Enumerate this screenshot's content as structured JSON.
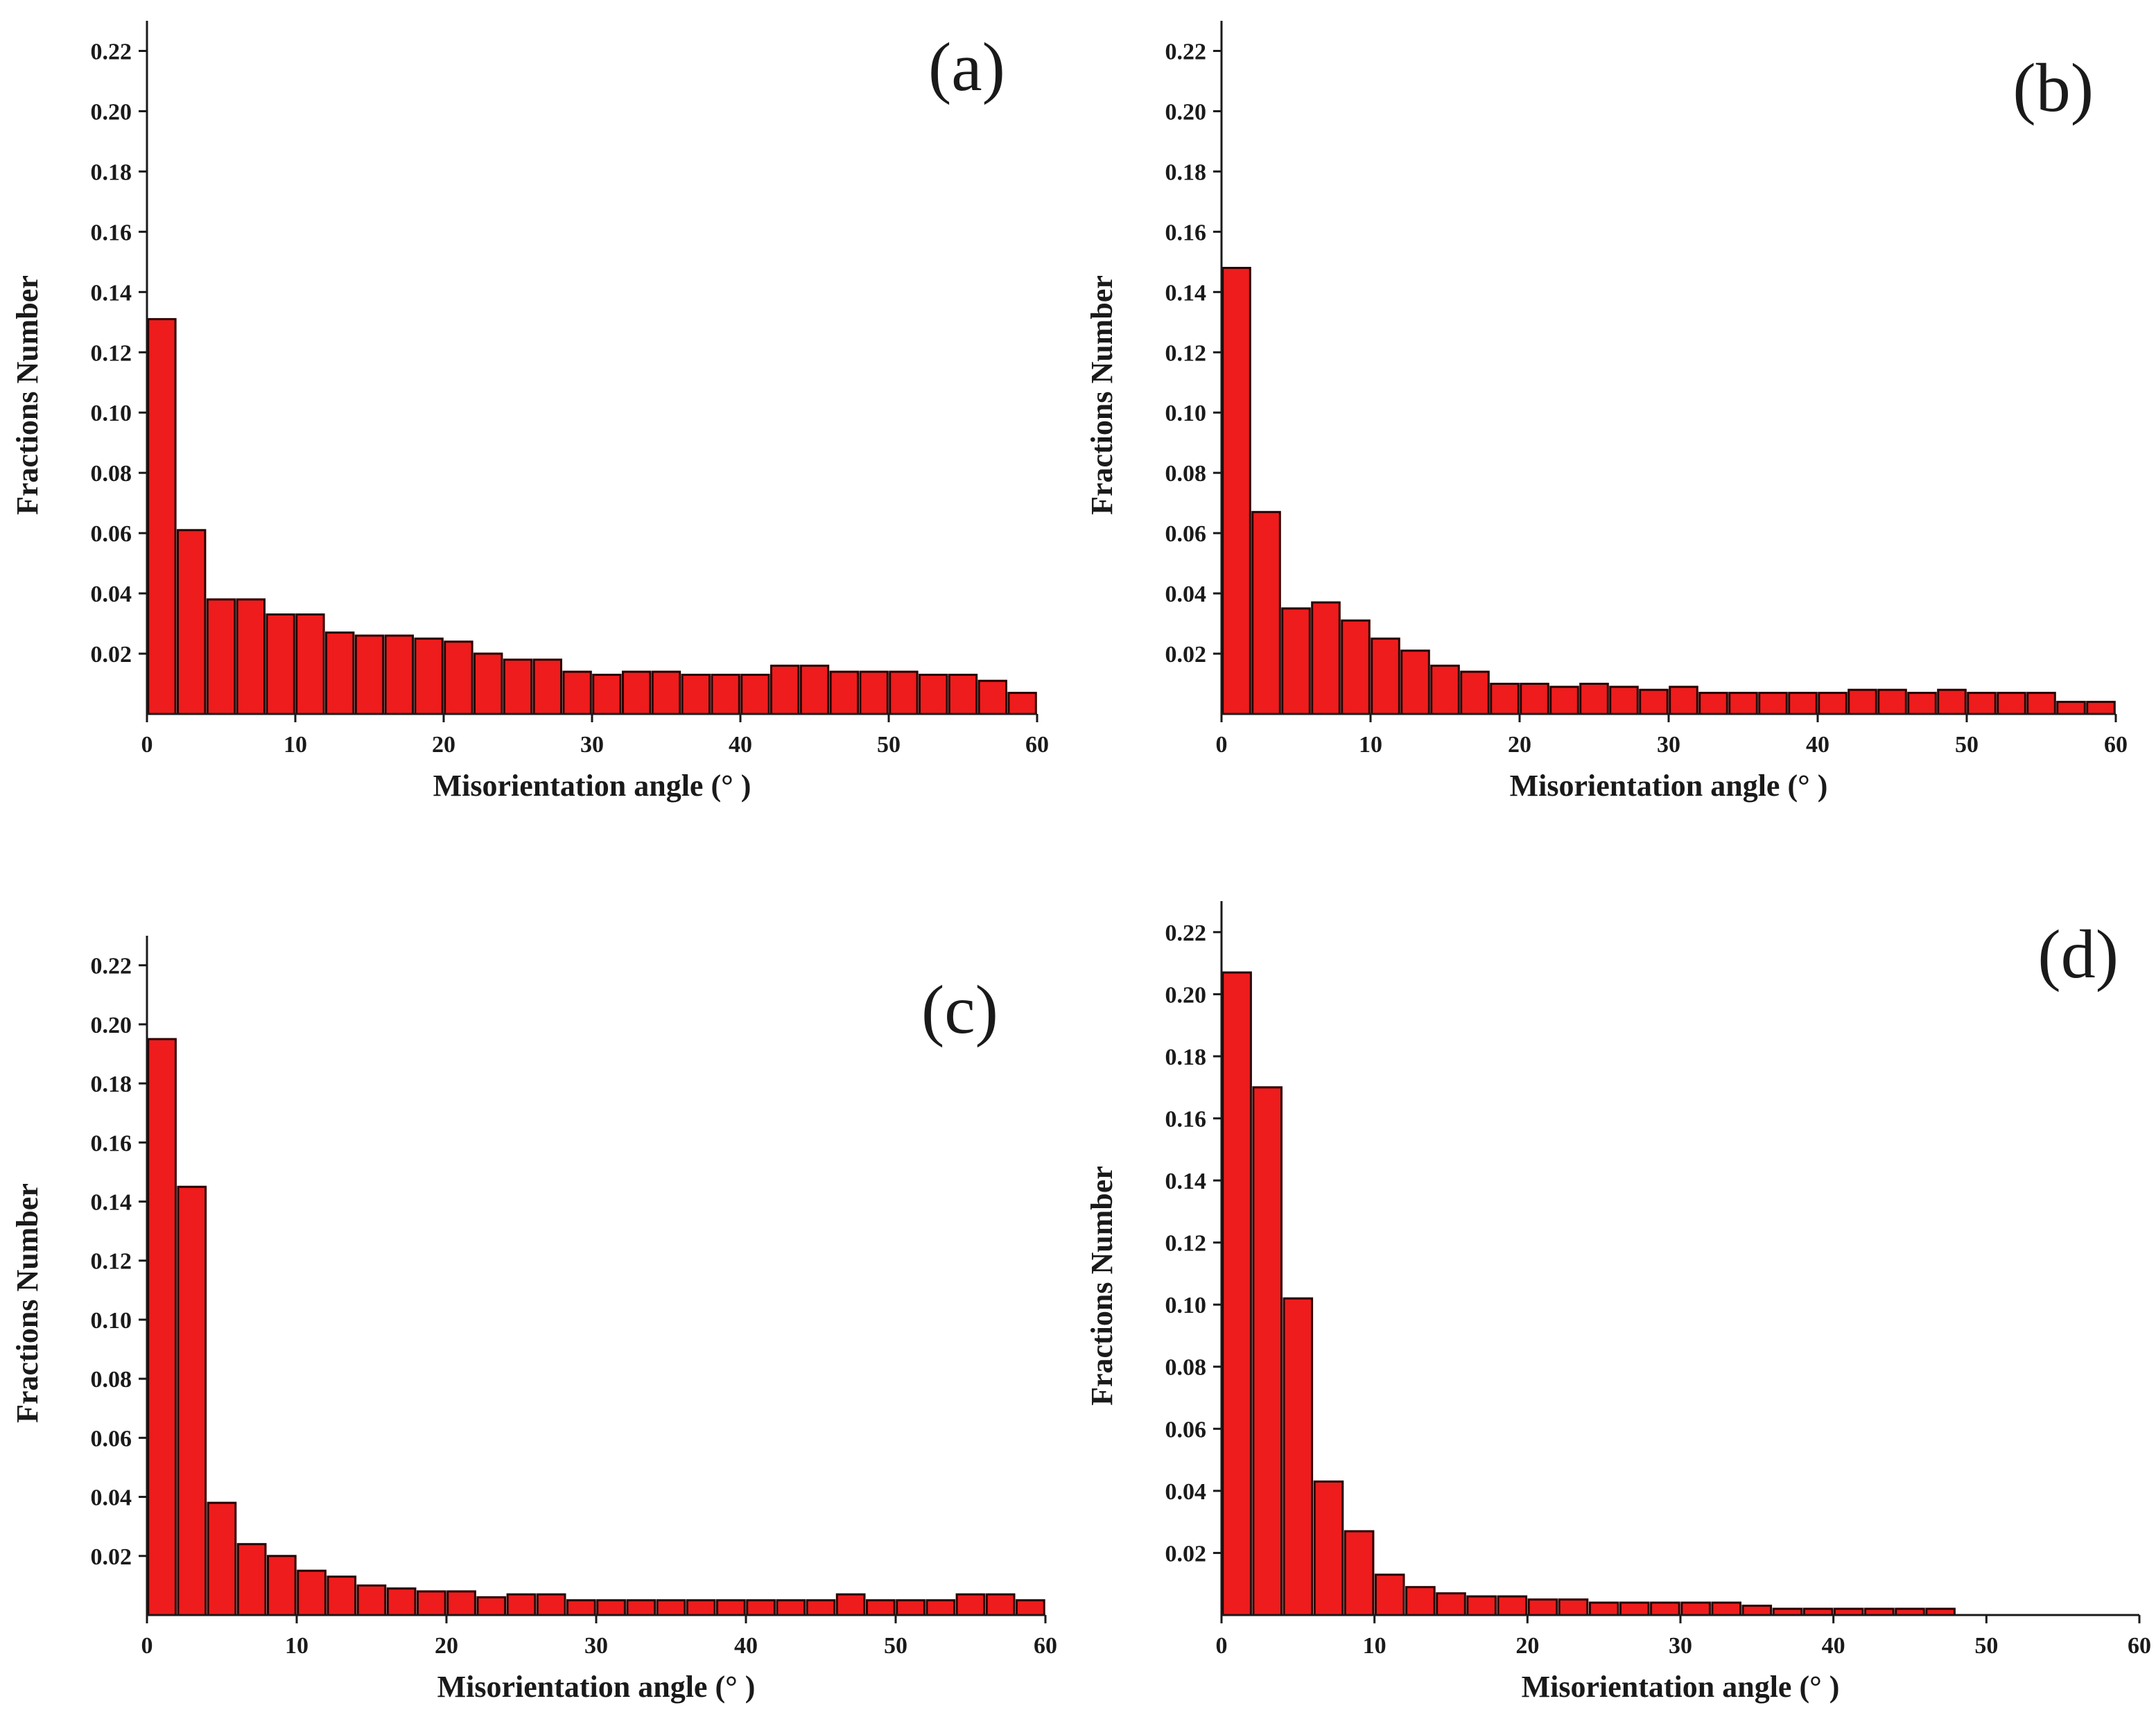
{
  "chart_data": [
    {
      "type": "bar",
      "panel_label": "(a)",
      "xlabel": "Misorientation angle (° )",
      "ylabel": "Fractions Number",
      "xlim": [
        0,
        60
      ],
      "ylim": [
        0,
        0.23
      ],
      "x_ticks": [
        "0",
        "10",
        "20",
        "30",
        "40",
        "50",
        "60"
      ],
      "y_ticks": [
        "0.02",
        "0.04",
        "0.06",
        "0.08",
        "0.10",
        "0.12",
        "0.14",
        "0.16",
        "0.18",
        "0.20",
        "0.22"
      ],
      "bin_width": 2,
      "values": [
        0.131,
        0.061,
        0.038,
        0.038,
        0.033,
        0.033,
        0.027,
        0.026,
        0.026,
        0.025,
        0.024,
        0.02,
        0.018,
        0.018,
        0.014,
        0.013,
        0.014,
        0.014,
        0.013,
        0.013,
        0.013,
        0.016,
        0.016,
        0.014,
        0.014,
        0.014,
        0.013,
        0.013,
        0.011,
        0.007
      ]
    },
    {
      "type": "bar",
      "panel_label": "(b)",
      "xlabel": "Misorientation angle (° )",
      "ylabel": "Fractions Number",
      "xlim": [
        0,
        60
      ],
      "ylim": [
        0,
        0.23
      ],
      "x_ticks": [
        "0",
        "10",
        "20",
        "30",
        "40",
        "50",
        "60"
      ],
      "y_ticks": [
        "0.02",
        "0.04",
        "0.06",
        "0.08",
        "0.10",
        "0.12",
        "0.14",
        "0.16",
        "0.18",
        "0.20",
        "0.22"
      ],
      "bin_width": 2,
      "values": [
        0.148,
        0.067,
        0.035,
        0.037,
        0.031,
        0.025,
        0.021,
        0.016,
        0.014,
        0.01,
        0.01,
        0.009,
        0.01,
        0.009,
        0.008,
        0.009,
        0.007,
        0.007,
        0.007,
        0.007,
        0.007,
        0.008,
        0.008,
        0.007,
        0.008,
        0.007,
        0.007,
        0.007,
        0.004,
        0.004
      ]
    },
    {
      "type": "bar",
      "panel_label": "(c)",
      "xlabel": "Misorientation angle (° )",
      "ylabel": "Fractions Number",
      "xlim": [
        0,
        60
      ],
      "ylim": [
        0,
        0.23
      ],
      "x_ticks": [
        "0",
        "10",
        "20",
        "30",
        "40",
        "50",
        "60"
      ],
      "y_ticks": [
        "0.02",
        "0.04",
        "0.06",
        "0.08",
        "0.10",
        "0.12",
        "0.14",
        "0.16",
        "0.18",
        "0.20",
        "0.22"
      ],
      "bin_width": 2,
      "values": [
        0.195,
        0.145,
        0.038,
        0.024,
        0.02,
        0.015,
        0.013,
        0.01,
        0.009,
        0.008,
        0.008,
        0.006,
        0.007,
        0.007,
        0.005,
        0.005,
        0.005,
        0.005,
        0.005,
        0.005,
        0.005,
        0.005,
        0.005,
        0.007,
        0.005,
        0.005,
        0.005,
        0.007,
        0.007,
        0.005
      ]
    },
    {
      "type": "bar",
      "panel_label": "(d)",
      "xlabel": "Misorientation angle (° )",
      "ylabel": "Fractions Number",
      "xlim": [
        0,
        60
      ],
      "ylim": [
        0,
        0.23
      ],
      "x_ticks": [
        "0",
        "10",
        "20",
        "30",
        "40",
        "50",
        "60"
      ],
      "y_ticks": [
        "0.02",
        "0.04",
        "0.06",
        "0.08",
        "0.10",
        "0.12",
        "0.14",
        "0.16",
        "0.18",
        "0.20",
        "0.22"
      ],
      "bin_width": 2,
      "values": [
        0.207,
        0.17,
        0.102,
        0.043,
        0.027,
        0.013,
        0.009,
        0.007,
        0.006,
        0.006,
        0.005,
        0.005,
        0.004,
        0.004,
        0.004,
        0.004,
        0.004,
        0.003,
        0.002,
        0.002,
        0.002,
        0.002,
        0.002,
        0.002
      ]
    }
  ]
}
